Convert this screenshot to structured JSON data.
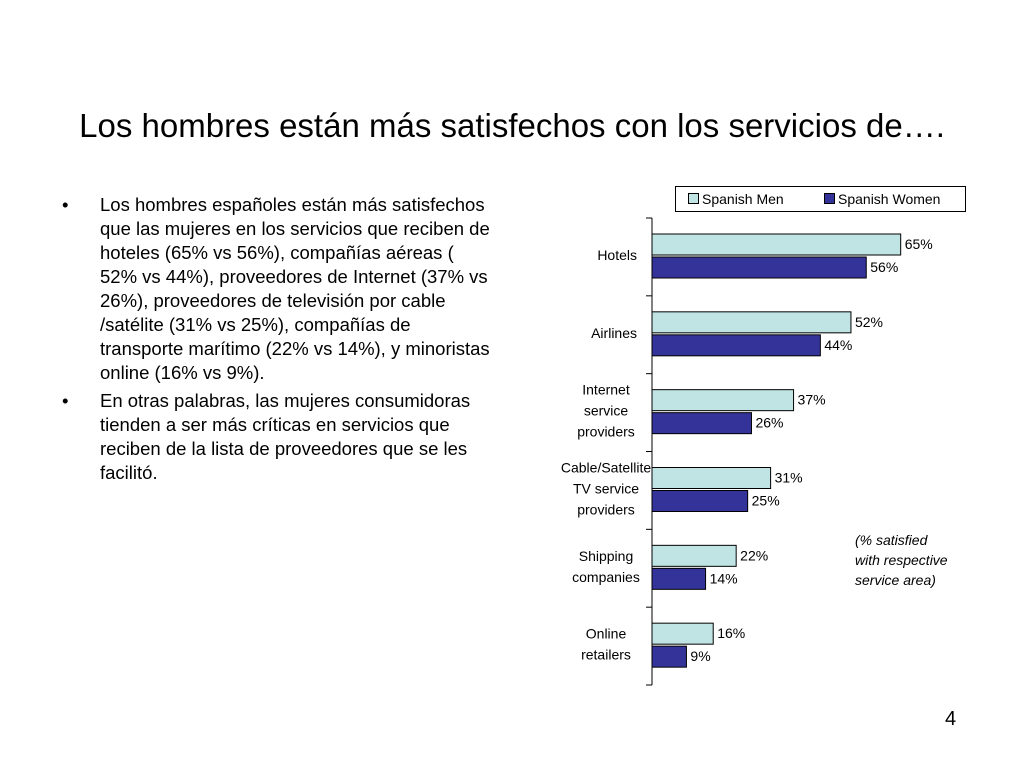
{
  "slide": {
    "title": "Los hombres están más satisfechos con los servicios de….",
    "bullets": [
      "Los hombres españoles están más satisfechos que las mujeres en los servicios que reciben de hoteles (65% vs 56%), compañías aéreas ( 52% vs 44%), proveedores de Internet (37% vs 26%), proveedores de televisión por cable /satélite (31% vs 25%), compañías de transporte marítimo (22% vs 14%), y minoristas online (16% vs 9%).",
      "En otras palabras, las mujeres consumidoras tienden a ser más críticas en servicios que reciben de la lista de proveedores que se les facilitó."
    ],
    "bullet_marker": "•",
    "page_number": "4"
  },
  "chart_data": {
    "type": "bar",
    "orientation": "horizontal",
    "categories": [
      [
        "Hotels"
      ],
      [
        "Airlines"
      ],
      [
        "Internet",
        "service",
        "providers"
      ],
      [
        "Cable/Satellite",
        "TV service",
        "providers"
      ],
      [
        "Shipping",
        "companies"
      ],
      [
        "Online",
        "retailers"
      ]
    ],
    "series": [
      {
        "name": "Spanish Men",
        "values": [
          65,
          52,
          37,
          31,
          22,
          16
        ],
        "labels": [
          "65%",
          "52%",
          "37%",
          "31%",
          "22%",
          "16%"
        ],
        "color": "#c0e4e4"
      },
      {
        "name": "Spanish Women",
        "values": [
          56,
          44,
          26,
          25,
          14,
          9
        ],
        "labels": [
          "56%",
          "44%",
          "26%",
          "25%",
          "14%",
          "9%"
        ],
        "color": "#333399"
      }
    ],
    "xlim": [
      0,
      100
    ],
    "grid": false,
    "legend_position": "top",
    "annotation": [
      "(% satisfied",
      "with respective",
      "service area)"
    ]
  }
}
